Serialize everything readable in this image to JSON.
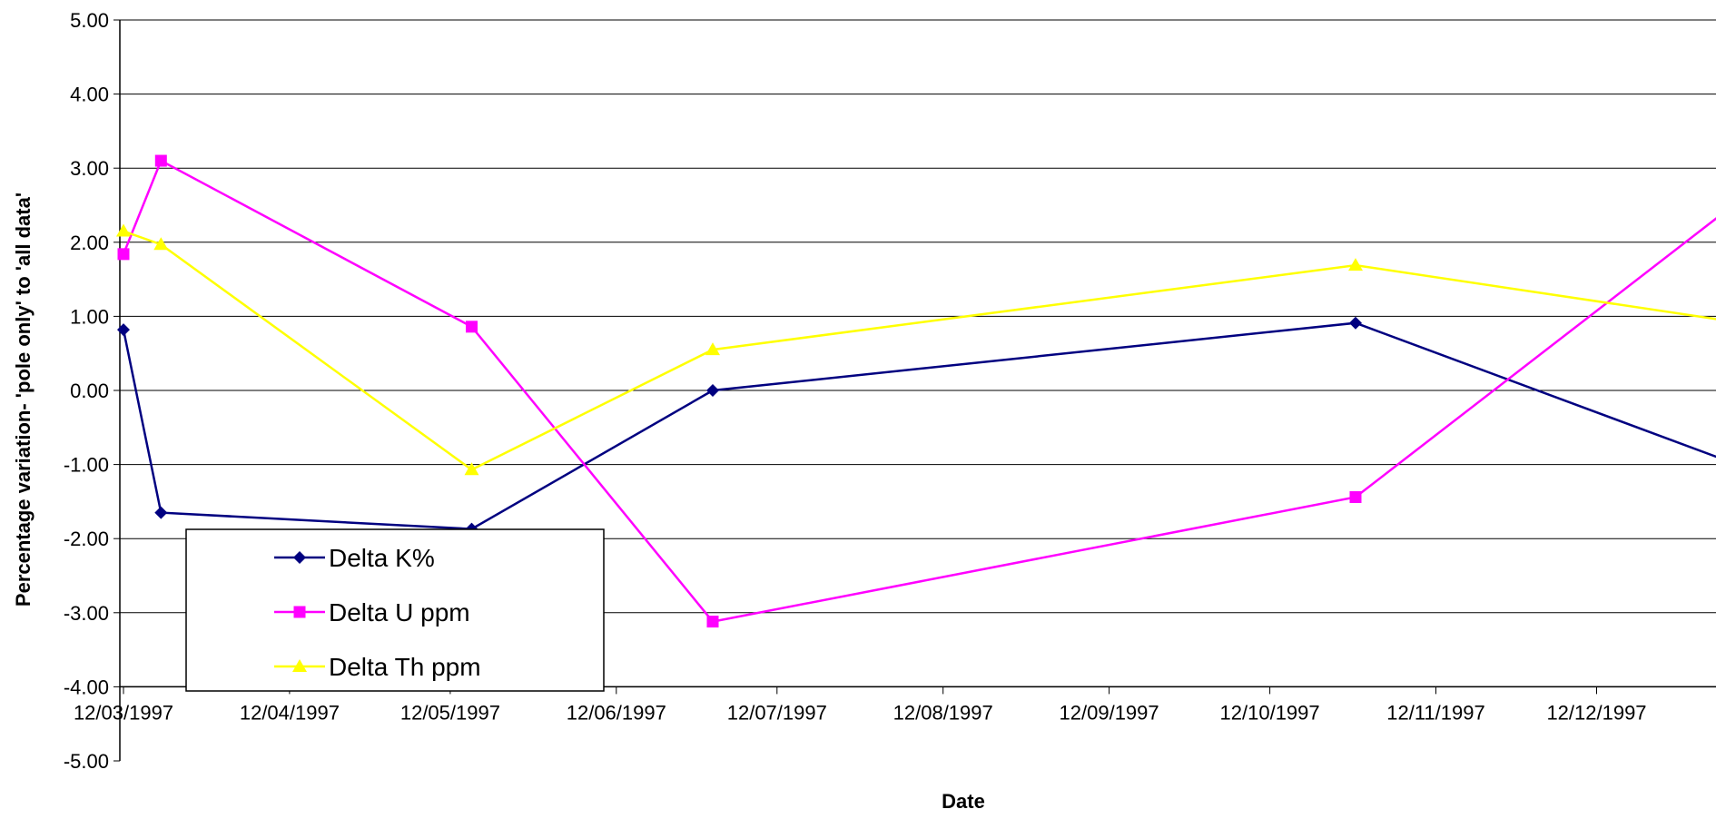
{
  "chart_data": {
    "type": "line",
    "title": "",
    "xlabel": "Date",
    "ylabel": "Percentage variation- 'pole only' to 'all data'",
    "ylim": [
      -5,
      5
    ],
    "y_ticks": [
      "5.00",
      "4.00",
      "3.00",
      "2.00",
      "1.00",
      "0.00",
      "-1.00",
      "-2.00",
      "-3.00",
      "-4.00",
      "-5.00"
    ],
    "x_axis_crosses_at": -4,
    "x_ticks": [
      {
        "date": "1997-03-12",
        "label": "12/03/1997"
      },
      {
        "date": "1997-04-12",
        "label": "12/04/1997"
      },
      {
        "date": "1997-05-12",
        "label": "12/05/1997"
      },
      {
        "date": "1997-06-12",
        "label": "12/06/1997"
      },
      {
        "date": "1997-07-12",
        "label": "12/07/1997"
      },
      {
        "date": "1997-08-12",
        "label": "12/08/1997"
      },
      {
        "date": "1997-09-12",
        "label": "12/09/1997"
      },
      {
        "date": "1997-10-12",
        "label": "12/10/1997"
      },
      {
        "date": "1997-11-12",
        "label": "12/11/1997"
      },
      {
        "date": "1997-12-12",
        "label": "12/12/1997"
      }
    ],
    "xlim": [
      "1997-03-12",
      "1998-01-11"
    ],
    "grid": {
      "horizontal": true,
      "vertical": false
    },
    "legend": {
      "position": "bottom-left"
    },
    "series": [
      {
        "name": "Delta K%",
        "color": "#000080",
        "marker": "diamond",
        "points": [
          {
            "x": "1997-03-12",
            "y": 0.82
          },
          {
            "x": "1997-03-19",
            "y": -1.65
          },
          {
            "x": "1997-05-16",
            "y": -1.87
          },
          {
            "x": "1997-06-30",
            "y": 0.0
          },
          {
            "x": "1997-10-28",
            "y": 0.91
          },
          {
            "x": "1998-01-11",
            "y": -1.1
          }
        ]
      },
      {
        "name": "Delta U ppm",
        "color": "#ff00ff",
        "marker": "square",
        "points": [
          {
            "x": "1997-03-12",
            "y": 1.84
          },
          {
            "x": "1997-03-19",
            "y": 3.1
          },
          {
            "x": "1997-05-16",
            "y": 0.86
          },
          {
            "x": "1997-06-30",
            "y": -3.12
          },
          {
            "x": "1997-10-28",
            "y": -1.44
          },
          {
            "x": "1998-01-11",
            "y": 2.75
          }
        ]
      },
      {
        "name": "Delta Th ppm",
        "color": "#ffff00",
        "marker": "triangle",
        "points": [
          {
            "x": "1997-03-12",
            "y": 2.15
          },
          {
            "x": "1997-03-19",
            "y": 1.97
          },
          {
            "x": "1997-05-16",
            "y": -1.07
          },
          {
            "x": "1997-06-30",
            "y": 0.55
          },
          {
            "x": "1997-10-28",
            "y": 1.69
          },
          {
            "x": "1998-01-11",
            "y": 0.88
          }
        ]
      }
    ]
  }
}
